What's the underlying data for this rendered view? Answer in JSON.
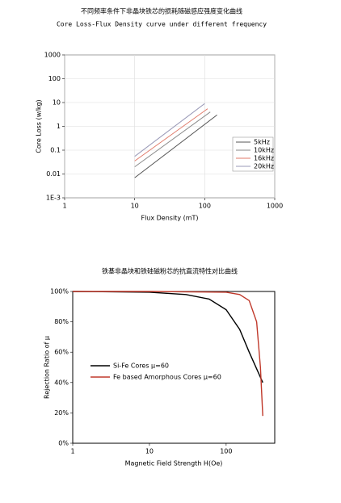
{
  "chart_data": [
    {
      "type": "line",
      "title": "不同频率条件下非晶块铁芯的损耗随磁感应强度变化曲线",
      "subtitle": "Core Loss-Flux Density curve under different frequency",
      "x_label": "Flux Density (mT)",
      "y_label": "Core Loss (w/kg)",
      "xlog": true,
      "ylog": true,
      "grid": true,
      "legend": "right",
      "xlim": [
        1,
        1000
      ],
      "ylim": [
        0.001,
        1000
      ],
      "xticks": [
        1,
        10,
        100,
        1000
      ],
      "yticks": [
        {
          "value": 0.001,
          "label": "1E-3"
        },
        0.01,
        0.1,
        1,
        10,
        100,
        1000
      ],
      "series": [
        {
          "name": "5kHz",
          "color": "#555555",
          "x": [
            10,
            150
          ],
          "values": [
            0.007,
            3
          ]
        },
        {
          "name": "10kHz",
          "color": "#8a8a8a",
          "x": [
            10,
            120
          ],
          "values": [
            0.02,
            4
          ]
        },
        {
          "name": "16kHz",
          "color": "#e07a6a",
          "x": [
            10,
            110
          ],
          "values": [
            0.035,
            5.5
          ]
        },
        {
          "name": "20kHz",
          "color": "#9a9ab8",
          "x": [
            10,
            100
          ],
          "values": [
            0.055,
            9
          ]
        }
      ]
    },
    {
      "type": "line",
      "title": "铁基非晶块和铁硅磁粉芯的抗直流特性对比曲线",
      "x_label": "Magnetic Field Strength  H(Oe)",
      "y_label": "Rejection Ratio of  μ",
      "xlog": true,
      "ylog": false,
      "grid": false,
      "legend": "left",
      "xlim": [
        1,
        430
      ],
      "ylim": [
        0,
        100
      ],
      "xticks": [
        1,
        10,
        100
      ],
      "yticks": [
        {
          "value": 0,
          "label": "0%"
        },
        {
          "value": 20,
          "label": "20%"
        },
        {
          "value": 40,
          "label": "40%"
        },
        {
          "value": 60,
          "label": "60%"
        },
        {
          "value": 80,
          "label": "80%"
        },
        {
          "value": 100,
          "label": "100%"
        }
      ],
      "series": [
        {
          "name": "Si-Fe Cores  μ=60",
          "color": "#000000",
          "x": [
            1,
            10,
            30,
            60,
            100,
            150,
            200,
            300
          ],
          "values": [
            100,
            99.5,
            98,
            95,
            88,
            75,
            60,
            40
          ]
        },
        {
          "name": "Fe based Amorphous Cores μ=60",
          "color": "#c0392b",
          "x": [
            1,
            10,
            100,
            150,
            200,
            250,
            280,
            300
          ],
          "values": [
            100,
            100,
            99.5,
            98,
            94,
            80,
            50,
            18
          ]
        }
      ]
    }
  ]
}
